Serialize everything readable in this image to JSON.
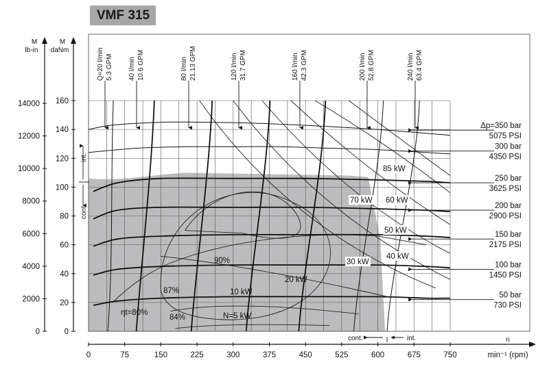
{
  "title": "VMF 315",
  "chart_data": {
    "type": "line",
    "title": "VMF 315",
    "x_axis": {
      "label_top": "n",
      "label": "min⁻¹ (rpm)",
      "range": [
        0,
        750
      ],
      "ticks": [
        "0",
        "75",
        "150",
        "225",
        "300",
        "375",
        "450",
        "525",
        "600",
        "675",
        "750"
      ]
    },
    "y_axis_lbin": {
      "label_top": "M",
      "label": "lb-in",
      "range": [
        0,
        14000
      ],
      "ticks": [
        "0",
        "2000",
        "4000",
        "6000",
        "8000",
        "10000",
        "12000",
        "14000"
      ]
    },
    "y_axis_danm": {
      "label_top": "M",
      "label": "daNm",
      "range": [
        0,
        160
      ],
      "ticks": [
        "0",
        "20",
        "40",
        "60",
        "80",
        "100",
        "120",
        "140",
        "160"
      ]
    },
    "grid": true,
    "continuous_region": {
      "max_rpm": 600,
      "max_torque_danm": 108
    },
    "annotations": {
      "int_torque": "int.",
      "cont_torque": "cont.",
      "cont_speed": "cont.",
      "int_speed": "int."
    },
    "flow_lines": [
      {
        "label_top": "Q=20 l/min",
        "label_bottom": "5.3 GPM",
        "rpm": 60
      },
      {
        "label_top": "40 l/min",
        "label_bottom": "10.6 GPM",
        "rpm": 125
      },
      {
        "label_top": "80 l/min",
        "label_bottom": "21.13 GPM",
        "rpm": 245
      },
      {
        "label_top": "120 l/min",
        "label_bottom": "31.7 GPM",
        "rpm": 365
      },
      {
        "label_top": "160 l/min",
        "label_bottom": "42.3 GPM",
        "rpm": 480
      },
      {
        "label_top": "200 l/min",
        "label_bottom": "52.8 GPM",
        "rpm": 600
      },
      {
        "label_top": "240 l/min",
        "label_bottom": "63.4 GPM",
        "rpm": 675
      }
    ],
    "pressure_lines": [
      {
        "label_bar": "Δp=350 bar",
        "label_psi": "5075 PSI",
        "torque_danm": 140
      },
      {
        "label_bar": "300 bar",
        "label_psi": "4350 PSI",
        "torque_danm": 125
      },
      {
        "label_bar": "250 bar",
        "label_psi": "3625 PSI",
        "torque_danm": 103
      },
      {
        "label_bar": "200 bar",
        "label_psi": "2900 PSI",
        "torque_danm": 84
      },
      {
        "label_bar": "150 bar",
        "label_psi": "2175 PSI",
        "torque_danm": 64
      },
      {
        "label_bar": "100 bar",
        "label_psi": "1450 PSI",
        "torque_danm": 43
      },
      {
        "label_bar": "50 bar",
        "label_psi": "730 PSI",
        "torque_danm": 22
      }
    ],
    "power_lines": [
      "N=5 kW",
      "10 kW",
      "20 kW",
      "30 kW",
      "40 kW",
      "50 kW",
      "60 kW",
      "70 kW",
      "85 kW"
    ],
    "efficiency_lines": [
      "ηt=80%",
      "84%",
      "87%",
      "90%"
    ],
    "series": [
      {
        "name": "Δp=350 bar",
        "x": [
          0,
          50,
          150,
          250,
          375,
          500,
          600,
          675,
          750
        ],
        "y": [
          140,
          143,
          145,
          145,
          144,
          142,
          140,
          138,
          136
        ]
      },
      {
        "name": "300 bar",
        "x": [
          0,
          100,
          200,
          300,
          400,
          500,
          600,
          700,
          750
        ],
        "y": [
          124,
          127,
          128,
          128,
          128,
          127,
          126,
          124,
          123
        ]
      },
      {
        "name": "250 bar",
        "x": [
          10,
          60,
          150,
          300,
          450,
          600,
          700,
          750
        ],
        "y": [
          97,
          103,
          106,
          106,
          106,
          105,
          104,
          103
        ]
      },
      {
        "name": "200 bar",
        "x": [
          10,
          60,
          150,
          300,
          450,
          600,
          700,
          750
        ],
        "y": [
          78,
          84,
          86,
          86,
          86,
          85,
          84,
          83
        ]
      },
      {
        "name": "150 bar",
        "x": [
          10,
          60,
          150,
          300,
          450,
          600,
          700,
          750
        ],
        "y": [
          59,
          64,
          66,
          67,
          67,
          67,
          66,
          65
        ]
      },
      {
        "name": "100 bar",
        "x": [
          10,
          60,
          150,
          300,
          450,
          600,
          700,
          750
        ],
        "y": [
          39,
          43,
          45,
          46,
          46,
          46,
          45,
          44
        ]
      },
      {
        "name": "50 bar",
        "x": [
          10,
          60,
          150,
          300,
          450,
          600,
          700,
          750
        ],
        "y": [
          18,
          21,
          23,
          24,
          24,
          24,
          23,
          23
        ]
      }
    ]
  }
}
